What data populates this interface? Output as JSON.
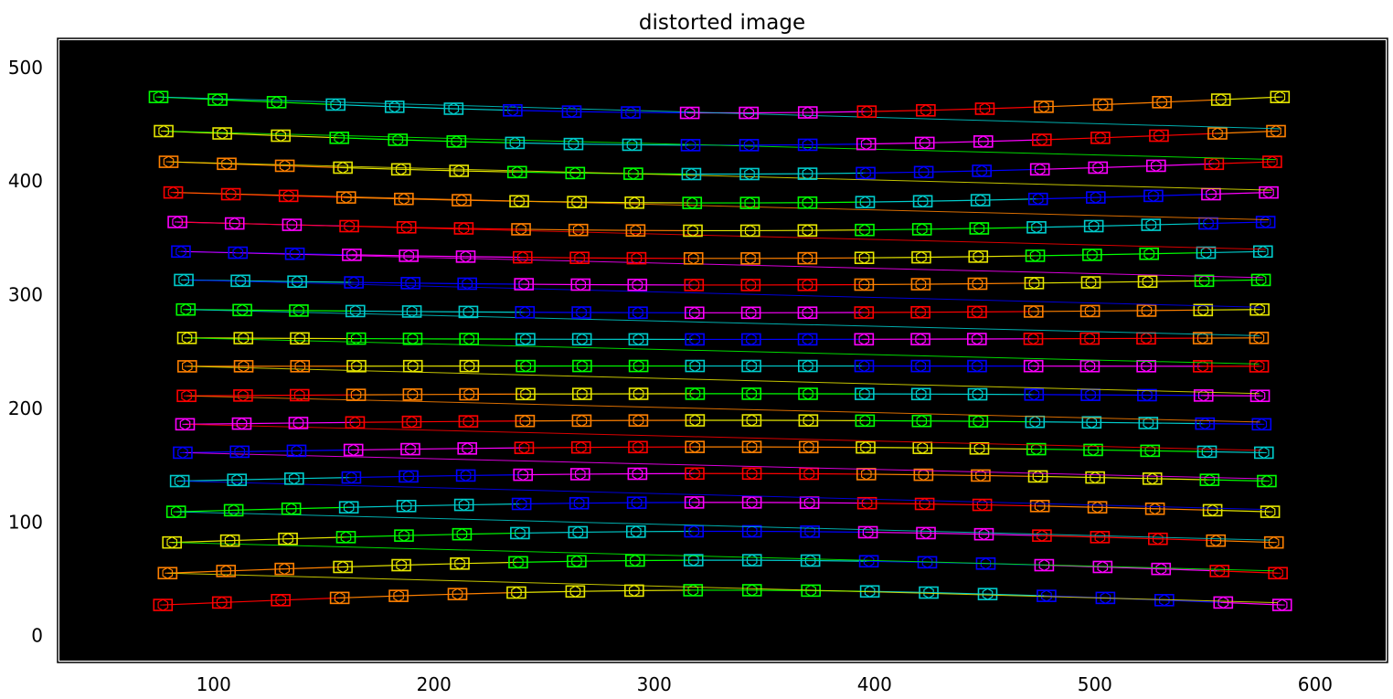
{
  "chart_data": {
    "type": "line",
    "title": "distorted image",
    "xlabel": "",
    "ylabel": "",
    "xlim": [
      30,
      632
    ],
    "ylim": [
      -22,
      524
    ],
    "x_ticks": [
      100,
      200,
      300,
      400,
      500,
      600
    ],
    "y_ticks": [
      0,
      100,
      200,
      300,
      400,
      500
    ],
    "background": "#000000",
    "marker": "square-with-hexagon",
    "colors": [
      "#ff0000",
      "#ff8000",
      "#e6e600",
      "#00ff00",
      "#00cccc",
      "#0000ff",
      "#ff00ff"
    ],
    "grid": {
      "rows": 17,
      "cols": 20,
      "x_left_bottom": 77,
      "x_left_top": 75,
      "x_right_bottom": 585,
      "x_right_top": 584,
      "left_end_compression": 12,
      "right_end_compression": 10,
      "y_bottom": 27,
      "y_top": 474,
      "center_bulge_bottom": 13,
      "center_bulge_top": -14,
      "lines": [
        {
          "y_left": 27,
          "y_right": 27
        },
        {
          "y_left": 55,
          "y_right": 55
        },
        {
          "y_left": 82,
          "y_right": 82
        },
        {
          "y_left": 109,
          "y_right": 109
        },
        {
          "y_left": 136,
          "y_right": 136
        },
        {
          "y_left": 161,
          "y_right": 161
        },
        {
          "y_left": 186,
          "y_right": 186
        },
        {
          "y_left": 211,
          "y_right": 211
        },
        {
          "y_left": 237,
          "y_right": 237
        },
        {
          "y_left": 262,
          "y_right": 262
        },
        {
          "y_left": 287,
          "y_right": 287
        },
        {
          "y_left": 313,
          "y_right": 313
        },
        {
          "y_left": 338,
          "y_right": 338
        },
        {
          "y_left": 364,
          "y_right": 364
        },
        {
          "y_left": 390,
          "y_right": 390
        },
        {
          "y_left": 417,
          "y_right": 417
        },
        {
          "y_left": 444,
          "y_right": 444
        },
        {
          "y_left": 474,
          "y_right": 474
        }
      ]
    }
  }
}
